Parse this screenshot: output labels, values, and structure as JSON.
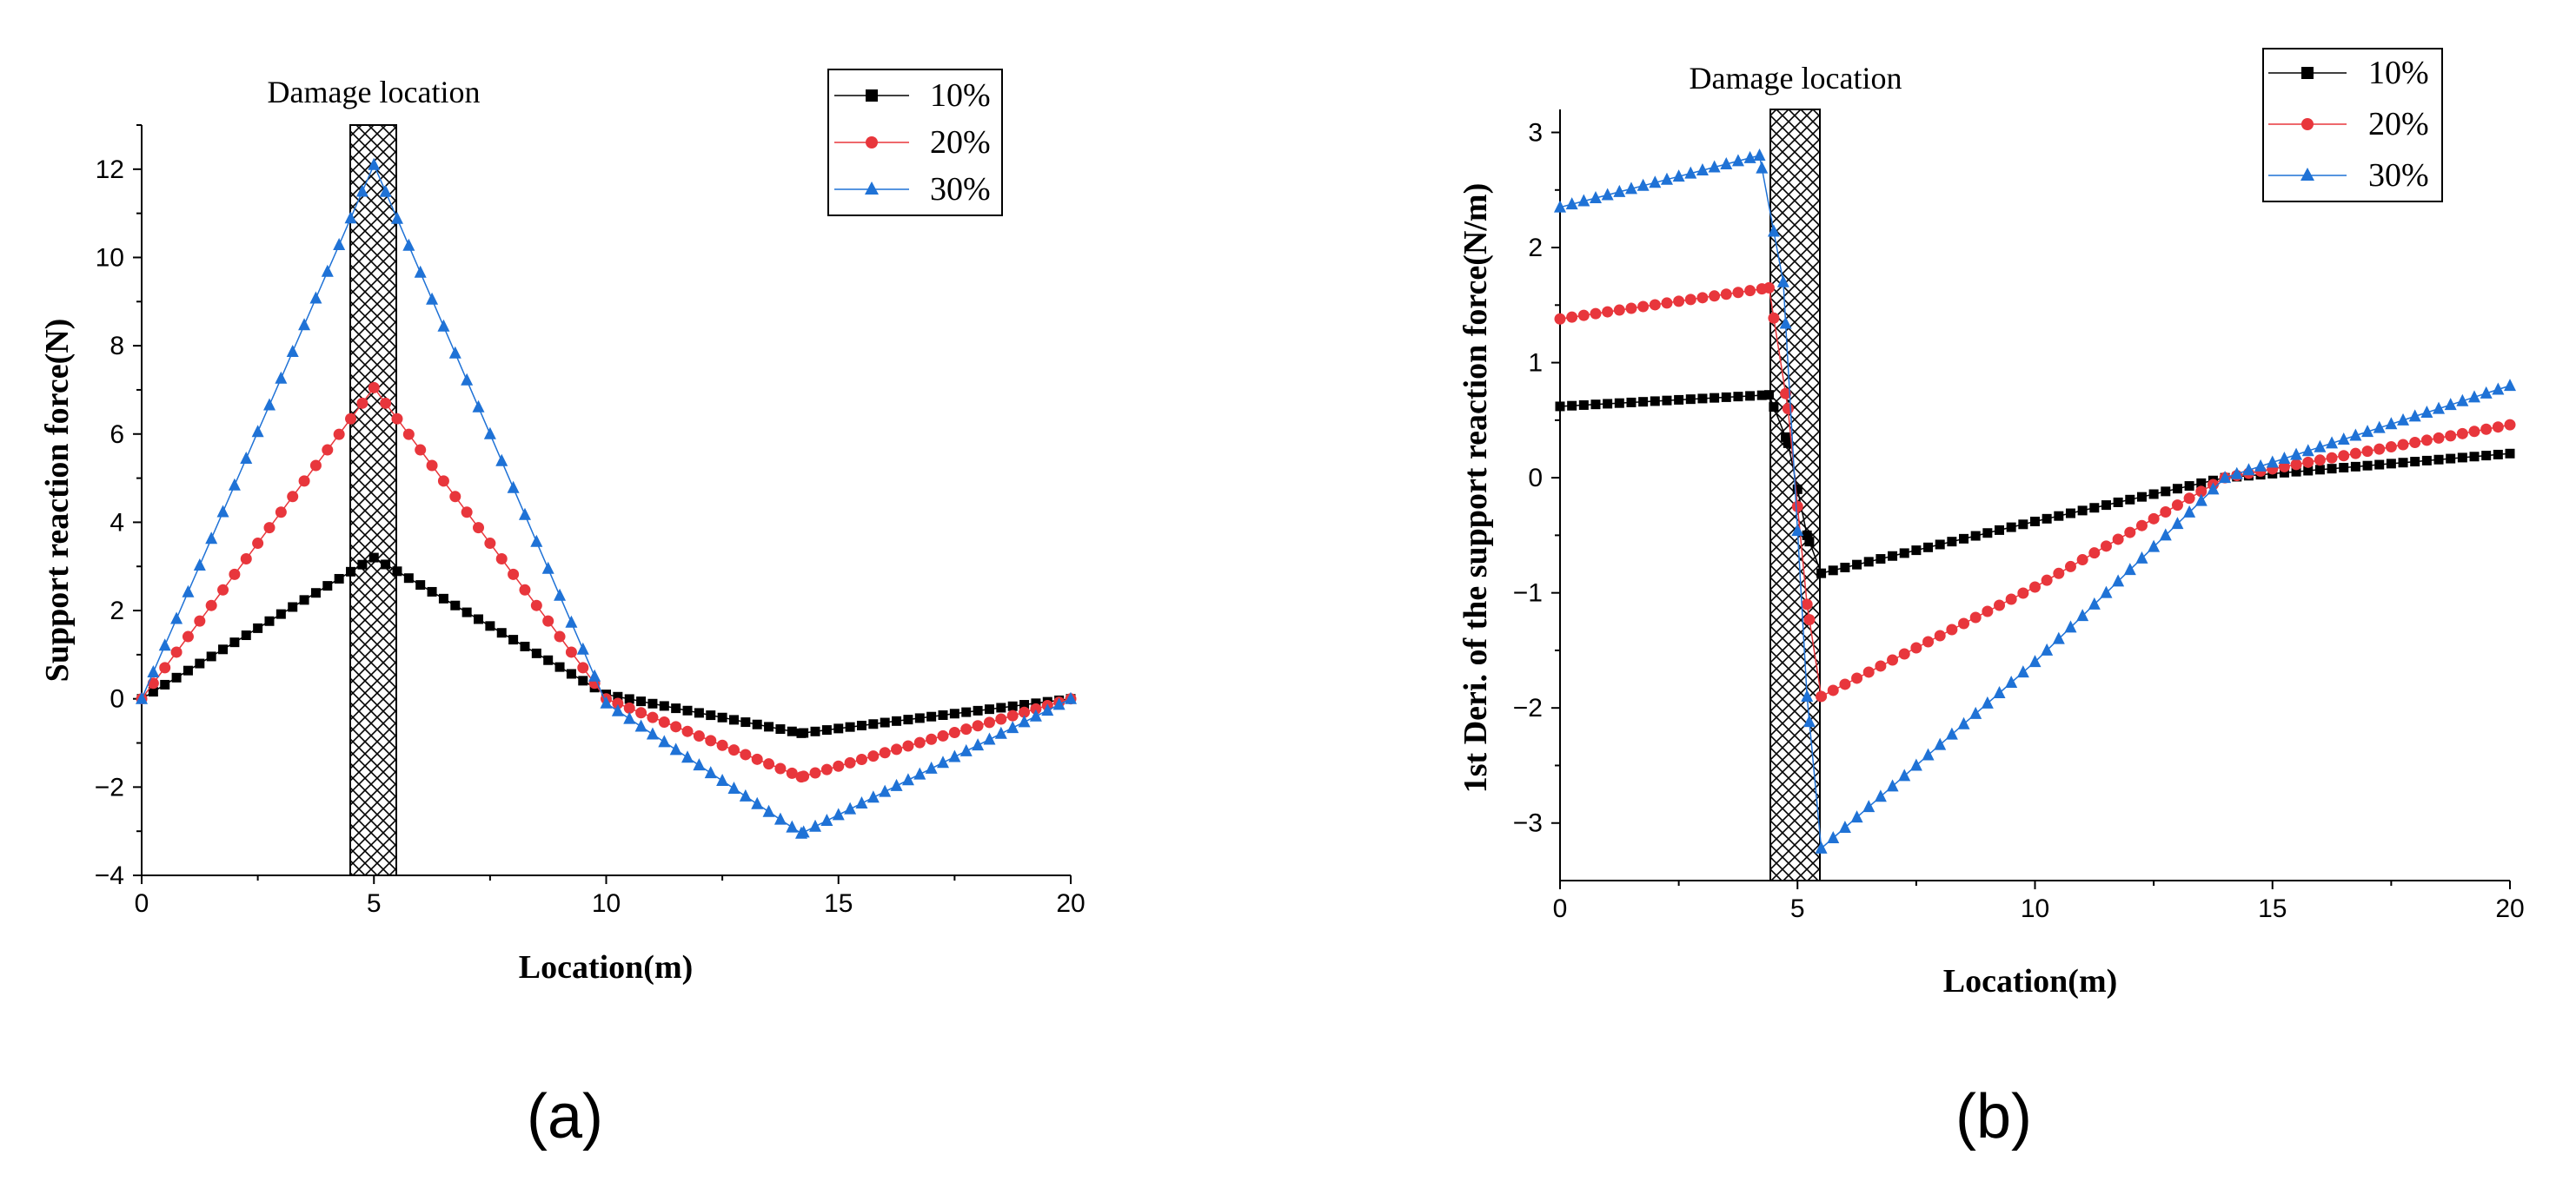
{
  "panel_labels": {
    "a": "(a)",
    "b": "(b)"
  },
  "legend_labels": [
    "10%",
    "20%",
    "30%"
  ],
  "colors": {
    "s10": "#000000",
    "s20": "#e8363c",
    "s30": "#1f72d6",
    "hatch": "#000000"
  },
  "chart_data": [
    {
      "type": "line",
      "panel": "a",
      "annotation": "Damage location",
      "damage_region": [
        4.5,
        5.5
      ],
      "xlabel": "Location(m)",
      "ylabel": "Support reaction force(N)",
      "xlim": [
        0,
        20
      ],
      "ylim": [
        -4,
        13
      ],
      "xticks": [
        0,
        5,
        10,
        15,
        20
      ],
      "xtick_labels": [
        "0",
        "5",
        "10",
        "15",
        "20"
      ],
      "yticks": [
        -4,
        -2,
        0,
        2,
        4,
        6,
        8,
        10,
        12
      ],
      "ytick_labels": [
        "−4",
        "−2",
        "0",
        "2",
        "4",
        "6",
        "8",
        "10",
        "12"
      ],
      "series": [
        {
          "name": "10%",
          "marker": "square",
          "points": [
            [
              0,
              0
            ],
            [
              5,
              3.2
            ],
            [
              10,
              0.1
            ],
            [
              14.2,
              -0.78
            ],
            [
              20,
              0
            ]
          ]
        },
        {
          "name": "20%",
          "marker": "circle",
          "points": [
            [
              0,
              0
            ],
            [
              5,
              7.05
            ],
            [
              10,
              0
            ],
            [
              14.2,
              -1.77
            ],
            [
              20,
              0
            ]
          ]
        },
        {
          "name": "30%",
          "marker": "triangle",
          "points": [
            [
              0,
              0
            ],
            [
              5,
              12.1
            ],
            [
              10,
              -0.1
            ],
            [
              14.2,
              -3.05
            ],
            [
              20,
              0
            ]
          ]
        }
      ]
    },
    {
      "type": "line",
      "panel": "b",
      "annotation": "Damage location",
      "damage_region": [
        4.5,
        5.5
      ],
      "xlabel": "Location(m)",
      "ylabel": "1st Deri. of the support reaction force(N/m)",
      "xlim": [
        0,
        20
      ],
      "ylim": [
        -3.5,
        3.2
      ],
      "xticks": [
        0,
        5,
        10,
        15,
        20
      ],
      "xtick_labels": [
        "0",
        "5",
        "10",
        "15",
        "20"
      ],
      "yticks": [
        -3,
        -2,
        -1,
        0,
        1,
        2,
        3
      ],
      "ytick_labels": [
        "−3",
        "−2",
        "−1",
        "0",
        "1",
        "2",
        "3"
      ],
      "series": [
        {
          "name": "10%",
          "marker": "square",
          "points": [
            [
              0,
              0.62
            ],
            [
              4.4,
              0.72
            ],
            [
              4.8,
              0.3
            ],
            [
              5.2,
              -0.5
            ],
            [
              5.5,
              -0.83
            ],
            [
              10,
              -0.38
            ],
            [
              14,
              0
            ],
            [
              20,
              0.21
            ]
          ]
        },
        {
          "name": "20%",
          "marker": "circle",
          "points": [
            [
              0,
              1.38
            ],
            [
              4.4,
              1.65
            ],
            [
              4.8,
              0.6
            ],
            [
              5.2,
              -1.1
            ],
            [
              5.5,
              -1.9
            ],
            [
              10,
              -0.95
            ],
            [
              14,
              0
            ],
            [
              20,
              0.46
            ]
          ]
        },
        {
          "name": "30%",
          "marker": "triangle",
          "points": [
            [
              0,
              2.35
            ],
            [
              4.2,
              2.8
            ],
            [
              4.7,
              1.7
            ],
            [
              5.2,
              -1.9
            ],
            [
              5.5,
              -3.22
            ],
            [
              10,
              -1.6
            ],
            [
              14,
              0
            ],
            [
              20,
              0.8
            ]
          ]
        }
      ]
    }
  ]
}
